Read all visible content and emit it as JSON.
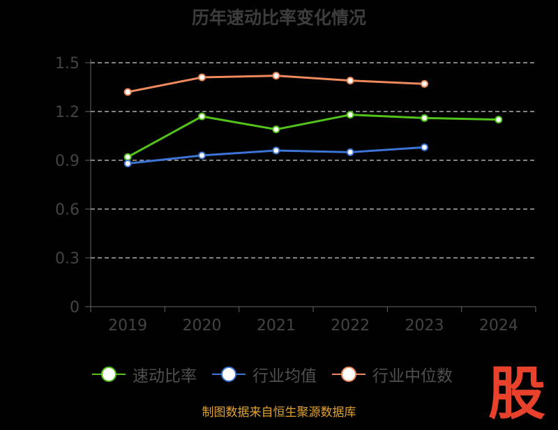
{
  "title": "历年速动比率变化情况",
  "source": "制图数据来自恒生聚源数据库",
  "stamp": "股",
  "chart_data": {
    "type": "line",
    "categories": [
      "2019",
      "2020",
      "2021",
      "2022",
      "2023",
      "2024"
    ],
    "ylim": [
      0,
      1.5
    ],
    "yticks": [
      "0",
      "0.3",
      "0.6",
      "0.9",
      "1.2",
      "1.5"
    ],
    "grid": true,
    "legend": "bottom",
    "series": [
      {
        "name": "速动比率",
        "color": "#52c41a",
        "values": [
          0.92,
          1.17,
          1.09,
          1.18,
          1.16,
          1.15
        ]
      },
      {
        "name": "行业均值",
        "color": "#3b75d6",
        "values": [
          0.88,
          0.93,
          0.96,
          0.95,
          0.98,
          null
        ]
      },
      {
        "name": "行业中位数",
        "color": "#ef8a5c",
        "values": [
          1.32,
          1.41,
          1.42,
          1.39,
          1.37,
          null
        ]
      }
    ]
  }
}
